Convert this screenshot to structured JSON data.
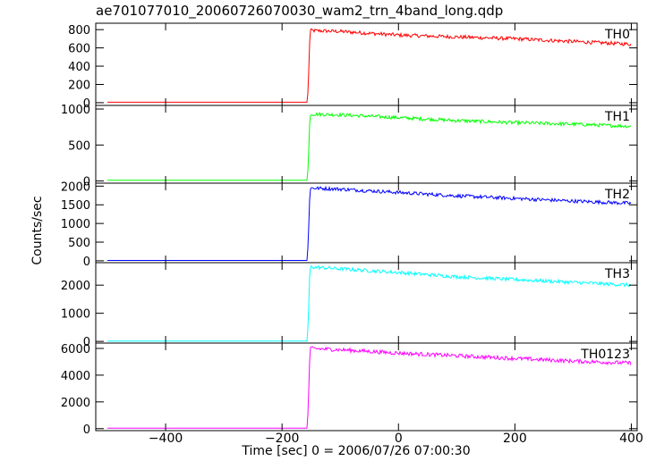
{
  "title": "ae701077010_20060726070030_wam2_trn_4band_long.qdp",
  "chart_data": {
    "type": "line",
    "title": "ae701077010_20060726070030_wam2_trn_4band_long.qdp",
    "xlabel": "Time [sec] 0 = 2006/07/26 07:00:30",
    "ylabel": "Counts/sec",
    "xlim": [
      -520,
      410
    ],
    "xticks": [
      -400,
      -200,
      0,
      200,
      400
    ],
    "grid": false,
    "legend": "none",
    "panels": [
      {
        "name": "TH0",
        "color": "#ff0000",
        "ylim": [
          -30,
          870
        ],
        "yticks": [
          0,
          200,
          400,
          600,
          800
        ],
        "points": [
          [
            -500,
            5
          ],
          [
            -157,
            5
          ],
          [
            -155,
            150
          ],
          [
            -152,
            790
          ],
          [
            -100,
            780
          ],
          [
            0,
            740
          ],
          [
            100,
            720
          ],
          [
            200,
            700
          ],
          [
            300,
            670
          ],
          [
            400,
            640
          ]
        ]
      },
      {
        "name": "TH1",
        "color": "#00ff00",
        "ylim": [
          -30,
          1050
        ],
        "yticks": [
          0,
          500,
          1000
        ],
        "points": [
          [
            -500,
            10
          ],
          [
            -157,
            10
          ],
          [
            -155,
            200
          ],
          [
            -152,
            930
          ],
          [
            -100,
            920
          ],
          [
            0,
            880
          ],
          [
            100,
            840
          ],
          [
            200,
            810
          ],
          [
            300,
            790
          ],
          [
            400,
            760
          ]
        ]
      },
      {
        "name": "TH2",
        "color": "#0000ff",
        "ylim": [
          -50,
          2080
        ],
        "yticks": [
          0,
          500,
          1000,
          1500,
          2000
        ],
        "points": [
          [
            -500,
            10
          ],
          [
            -157,
            10
          ],
          [
            -155,
            500
          ],
          [
            -152,
            1950
          ],
          [
            -100,
            1920
          ],
          [
            0,
            1830
          ],
          [
            100,
            1740
          ],
          [
            200,
            1670
          ],
          [
            300,
            1600
          ],
          [
            400,
            1540
          ]
        ]
      },
      {
        "name": "TH3",
        "color": "#00ffff",
        "ylim": [
          -60,
          2800
        ],
        "yticks": [
          0,
          1000,
          2000
        ],
        "points": [
          [
            -500,
            10
          ],
          [
            -157,
            10
          ],
          [
            -155,
            700
          ],
          [
            -152,
            2650
          ],
          [
            -100,
            2580
          ],
          [
            0,
            2450
          ],
          [
            100,
            2300
          ],
          [
            200,
            2200
          ],
          [
            300,
            2100
          ],
          [
            400,
            2000
          ]
        ]
      },
      {
        "name": "TH0123",
        "color": "#ff00ff",
        "ylim": [
          -150,
          6400
        ],
        "yticks": [
          0,
          2000,
          4000,
          6000
        ],
        "points": [
          [
            -500,
            30
          ],
          [
            -157,
            30
          ],
          [
            -155,
            1500
          ],
          [
            -152,
            6000
          ],
          [
            -100,
            5900
          ],
          [
            0,
            5650
          ],
          [
            100,
            5450
          ],
          [
            200,
            5250
          ],
          [
            300,
            5050
          ],
          [
            400,
            4900
          ]
        ]
      }
    ]
  }
}
